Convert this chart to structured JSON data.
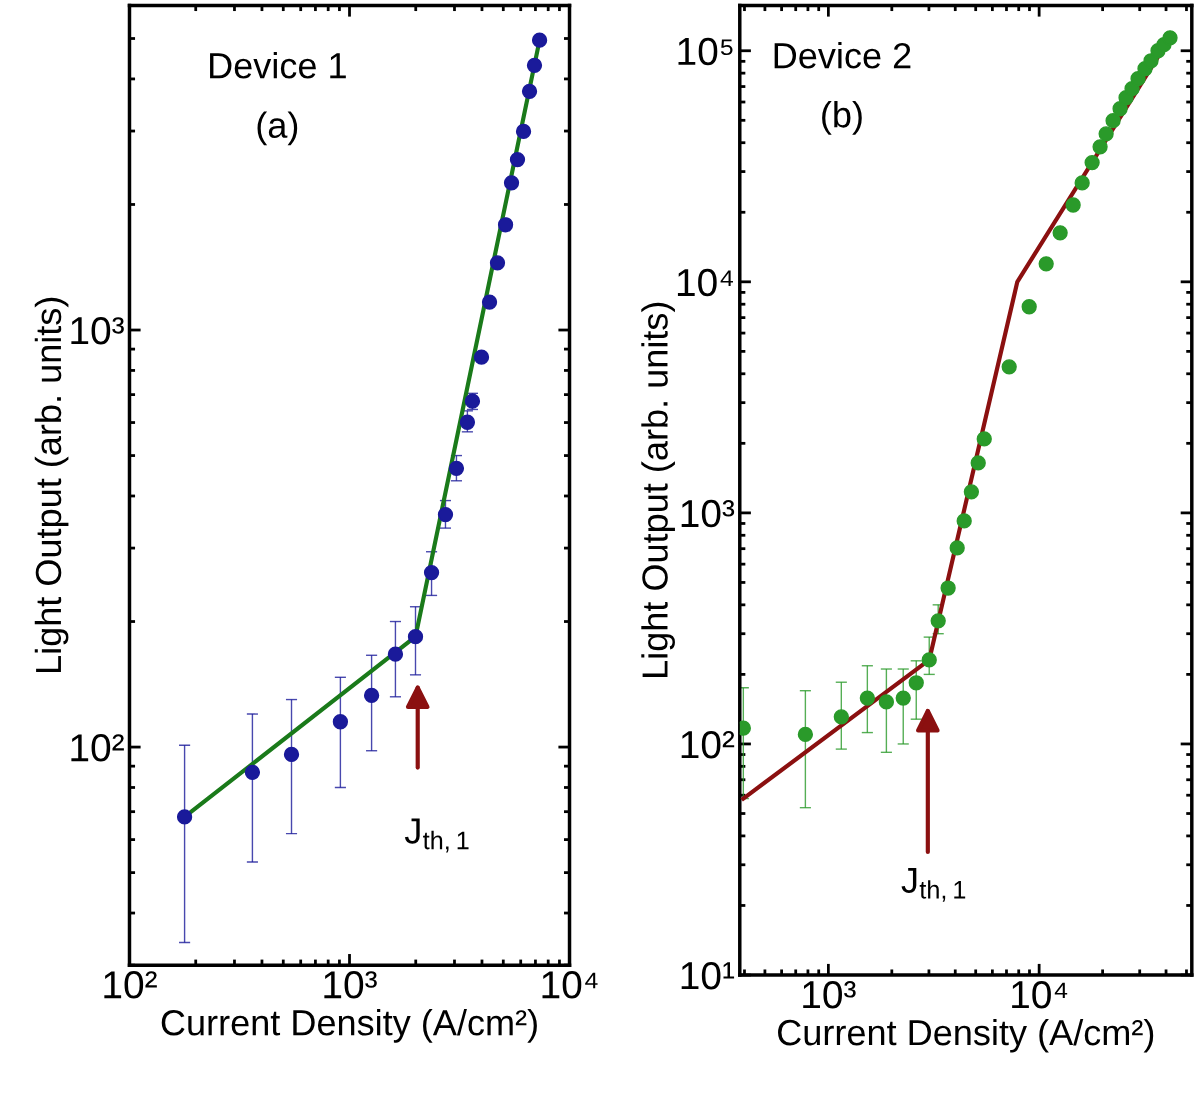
{
  "chart_data": [
    {
      "type": "scatter",
      "xlabel": "Current Density (A/cm²)",
      "ylabel": "Light Output (arb. units)",
      "log": "xy",
      "grid": false,
      "legend": false,
      "marker": "circle",
      "xlim": [
        100,
        10000
      ],
      "ylim": [
        30,
        6000
      ],
      "xticks": [
        {
          "value": 100,
          "label": "10²"
        },
        {
          "value": 1000,
          "label": "10³"
        },
        {
          "value": 10000,
          "label": "10⁴"
        }
      ],
      "yticks": [
        {
          "value": 100,
          "label": "10²"
        },
        {
          "value": 1000,
          "label": "10³"
        }
      ],
      "annotations": [
        "Device 1",
        "(a)",
        "J$_{th,1}$"
      ],
      "series": [
        {
          "color": "#1a1a9a",
          "x": [
            178,
            362,
            545,
            909,
            1260,
            1617,
            1995,
            2360,
            2730,
            3062,
            3434,
            3620,
            3980,
            4330,
            4705,
            5120,
            5450,
            5800,
            6180,
            6580,
            6930,
            7310
          ],
          "values": [
            68,
            87,
            96,
            115,
            133,
            167,
            184,
            262,
            361,
            466,
            601,
            675,
            861,
            1167,
            1449,
            1788,
            2254,
            2562,
            2993,
            3735,
            4312,
            4954
          ],
          "errors": [
            [
              34,
              101
            ],
            [
              53,
              120
            ],
            [
              62,
              130
            ],
            [
              80,
              147
            ],
            [
              98,
              166
            ],
            [
              132,
              200
            ],
            [
              149,
              217
            ],
            [
              231,
              294
            ],
            [
              335,
              390
            ],
            [
              435,
              500
            ],
            [
              570,
              640
            ],
            [
              645,
              705
            ],
            null,
            null,
            null,
            null,
            null,
            null,
            null,
            null,
            null,
            null
          ]
        },
        {
          "type": "line",
          "color": "#1a7a1a",
          "line_style": "solid",
          "marker": "none",
          "x": [
            178,
            1995,
            7310
          ],
          "values": [
            68,
            184,
            4954
          ]
        }
      ]
    },
    {
      "type": "scatter",
      "xlabel": "Current Density (A/cm²)",
      "ylabel": "Light Output (arb. units)",
      "log": "xy",
      "grid": false,
      "legend": false,
      "marker": "circle",
      "xlim": [
        380,
        53000
      ],
      "ylim": [
        10,
        157000
      ],
      "xticks": [
        {
          "value": 1000,
          "label": "10³"
        },
        {
          "value": 10000,
          "label": "10⁴"
        }
      ],
      "yticks": [
        {
          "value": 10,
          "label": "10¹"
        },
        {
          "value": 100,
          "label": "10²"
        },
        {
          "value": 1000,
          "label": "10³"
        },
        {
          "value": 10000,
          "label": "10⁴"
        },
        {
          "value": 100000,
          "label": "10⁵"
        }
      ],
      "annotations": [
        "Device 2",
        "(b)",
        "J$_{th,1}$"
      ],
      "series": [
        {
          "color": "#2a9a2a",
          "x": [
            395,
            778,
            1152,
            1531,
            1885,
            2266,
            2612,
            3010,
            3320,
            3700,
            4085,
            4410,
            4770,
            5140,
            5490,
            7210,
            8970,
            10800,
            12580,
            14500,
            16000,
            17840,
            19460,
            20790,
            22430,
            24210,
            25840,
            27590,
            29460,
            31780,
            33950,
            36640,
            39100,
            41780
          ],
          "values": [
            117,
            110,
            131,
            158,
            152,
            158,
            184,
            231,
            341,
            473,
            705,
            923,
            1233,
            1645,
            2090,
            4285,
            7800,
            11970,
            16300,
            21500,
            26800,
            32800,
            38400,
            43700,
            49800,
            56100,
            62600,
            68500,
            75700,
            83600,
            90500,
            100000,
            106200,
            113800
          ],
          "errors": [
            [
              58,
              175
            ],
            [
              53,
              170
            ],
            [
              95,
              185
            ],
            [
              112,
              218
            ],
            [
              92,
              211
            ],
            [
              100,
              211
            ],
            [
              128,
              229
            ],
            [
              200,
              290
            ],
            [
              300,
              400
            ],
            null,
            null,
            null,
            null,
            null,
            null,
            null,
            null,
            null,
            null,
            null,
            null,
            null,
            null,
            null,
            null,
            null,
            null,
            null,
            null,
            null,
            null,
            null,
            null,
            null
          ]
        },
        {
          "type": "line",
          "color": "#8b1010",
          "line_style": "solid",
          "marker": "none",
          "x": [
            395,
            3010,
            7880,
            41780
          ],
          "values": [
            58,
            231,
            10000,
            113800
          ]
        }
      ]
    }
  ]
}
